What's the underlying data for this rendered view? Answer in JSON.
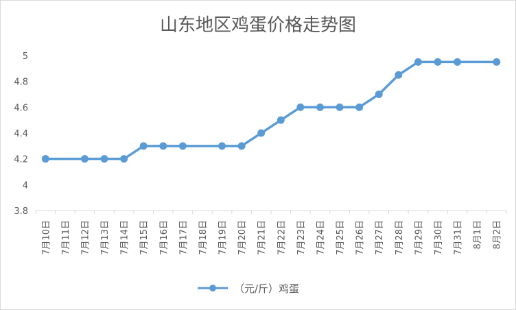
{
  "chart_data": {
    "type": "line",
    "title": "山东地区鸡蛋价格走势图",
    "categories": [
      "7月10日",
      "7月11日",
      "7月12日",
      "7月13日",
      "7月14日",
      "7月15日",
      "7月16日",
      "7月17日",
      "7月18日",
      "7月19日",
      "7月20日",
      "7月21日",
      "7月22日",
      "7月23日",
      "7月24日",
      "7月25日",
      "7月26日",
      "7月27日",
      "7月28日",
      "7月29日",
      "7月30日",
      "7月31日",
      "8月1日",
      "8月2日"
    ],
    "series": [
      {
        "name": "（元/斤）鸡蛋",
        "color": "#5b9bd5",
        "values": [
          4.2,
          null,
          4.2,
          4.2,
          4.2,
          4.3,
          4.3,
          4.3,
          null,
          4.3,
          4.3,
          4.4,
          4.5,
          4.6,
          4.6,
          4.6,
          4.6,
          4.7,
          4.85,
          4.95,
          4.95,
          4.95,
          null,
          4.95
        ]
      }
    ],
    "yticks": [
      "3.8",
      "4",
      "4.2",
      "4.4",
      "4.6",
      "4.8",
      "5"
    ],
    "ylim": [
      3.8,
      5.0
    ],
    "grid": false,
    "legend": "bottom"
  }
}
